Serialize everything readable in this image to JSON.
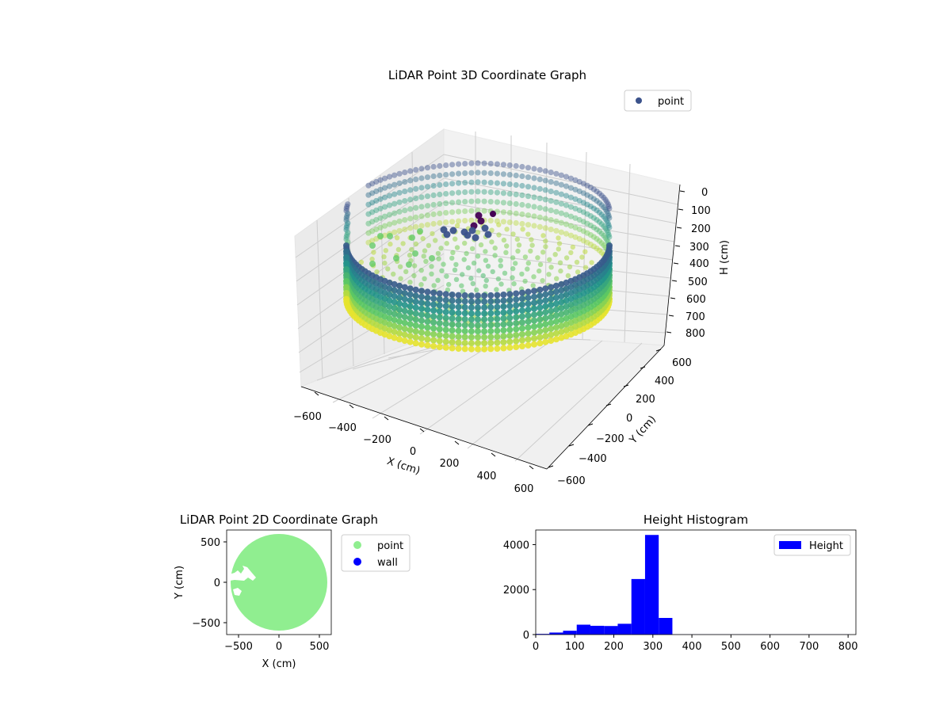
{
  "colors": {
    "scatter_high": "#fde725",
    "scatter_mid": "#21918c",
    "scatter_low": "#3b528b",
    "scatter_min": "#440154",
    "point_2d": "#90ee90",
    "wall_2d": "#0000ff",
    "histogram": "#0000ff",
    "pane": "#f2f2f2",
    "grid": "#cccccc"
  },
  "chart_data": [
    {
      "type": "scatter",
      "projection": "3d",
      "title": "LiDAR Point 3D Coordinate Graph",
      "xlabel": "X (cm)",
      "ylabel": "Y (cm)",
      "zlabel": "H (cm)",
      "xlim": [
        -650,
        650
      ],
      "ylim": [
        -650,
        650
      ],
      "zlim": [
        820,
        0
      ],
      "xticks": [
        "−600",
        "−400",
        "−200",
        "0",
        "200",
        "400",
        "600"
      ],
      "yticks": [
        "−600",
        "−400",
        "−200",
        "0",
        "200",
        "400",
        "600"
      ],
      "zticks": [
        "0",
        "100",
        "200",
        "300",
        "400",
        "500",
        "600",
        "700",
        "800"
      ],
      "legend": {
        "placement": "top-right",
        "entries": [
          "point"
        ]
      },
      "colormap": "viridis",
      "grid": true,
      "series": [
        {
          "name": "point",
          "description": "cylindrical wall ring of radius ~600 cm spanning height ~120–760 cm plus interior floor points with a cluster near the origin"
        }
      ]
    },
    {
      "type": "scatter",
      "title": "LiDAR Point 2D Coordinate Graph",
      "xlabel": "X (cm)",
      "ylabel": "Y (cm)",
      "xlim": [
        -650,
        650
      ],
      "ylim": [
        -650,
        650
      ],
      "xticks": [
        "−500",
        "0",
        "500"
      ],
      "yticks": [
        "−500",
        "0",
        "500"
      ],
      "legend": {
        "placement": "outside-right",
        "entries": [
          "point",
          "wall"
        ]
      },
      "series": [
        {
          "name": "point",
          "radius": 600
        },
        {
          "name": "wall"
        }
      ]
    },
    {
      "type": "bar",
      "title": "Height Histogram",
      "xlim": [
        0,
        820
      ],
      "ylim": [
        0,
        4650
      ],
      "xticks": [
        "0",
        "100",
        "200",
        "300",
        "400",
        "500",
        "600",
        "700",
        "800"
      ],
      "yticks": [
        "0",
        "2000",
        "4000"
      ],
      "legend": {
        "placement": "top-right",
        "entries": [
          "Height"
        ]
      },
      "bin_width": 35,
      "series": [
        {
          "name": "Height",
          "bins": [
            {
              "x0": 0,
              "x1": 35,
              "value": 30
            },
            {
              "x0": 35,
              "x1": 70,
              "value": 90
            },
            {
              "x0": 70,
              "x1": 105,
              "value": 170
            },
            {
              "x0": 105,
              "x1": 140,
              "value": 440
            },
            {
              "x0": 140,
              "x1": 175,
              "value": 390
            },
            {
              "x0": 175,
              "x1": 210,
              "value": 380
            },
            {
              "x0": 210,
              "x1": 245,
              "value": 480
            },
            {
              "x0": 245,
              "x1": 280,
              "value": 2470
            },
            {
              "x0": 280,
              "x1": 315,
              "value": 4430
            },
            {
              "x0": 315,
              "x1": 350,
              "value": 740
            },
            {
              "x0": 350,
              "x1": 385,
              "value": 5
            },
            {
              "x0": 385,
              "x1": 420,
              "value": 5
            },
            {
              "x0": 420,
              "x1": 455,
              "value": 5
            },
            {
              "x0": 455,
              "x1": 490,
              "value": 5
            },
            {
              "x0": 490,
              "x1": 525,
              "value": 5
            },
            {
              "x0": 525,
              "x1": 560,
              "value": 5
            },
            {
              "x0": 560,
              "x1": 595,
              "value": 5
            },
            {
              "x0": 595,
              "x1": 630,
              "value": 5
            },
            {
              "x0": 630,
              "x1": 665,
              "value": 5
            },
            {
              "x0": 665,
              "x1": 700,
              "value": 5
            },
            {
              "x0": 700,
              "x1": 735,
              "value": 5
            },
            {
              "x0": 735,
              "x1": 770,
              "value": 5
            },
            {
              "x0": 770,
              "x1": 805,
              "value": 5
            }
          ]
        }
      ]
    }
  ]
}
